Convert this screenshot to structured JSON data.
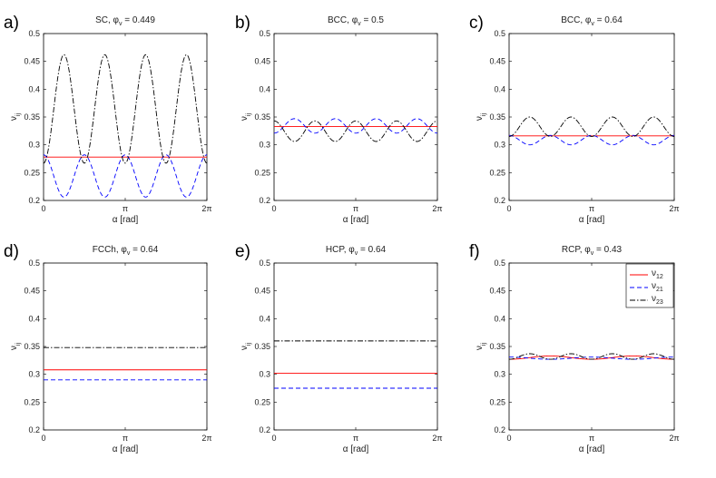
{
  "chart_data": [
    {
      "type": "line",
      "panel_label": "a)",
      "title_prefix": "SC, ",
      "phi_label": "φ",
      "phi_sub": "v",
      "phi_value": "= 0.449",
      "xlabel": "α [rad]",
      "ylabel": "ν",
      "ylabel_sub": "ij",
      "xticks": [
        "0",
        "π",
        "2π"
      ],
      "yticks": [
        "0.2",
        "0.25",
        "0.3",
        "0.35",
        "0.4",
        "0.45",
        "0.5"
      ],
      "xlim": [
        0,
        6.2832
      ],
      "ylim": [
        0.2,
        0.5
      ],
      "series": [
        {
          "name": "ν12",
          "style": "solid",
          "color": "#ff0000",
          "mean": 0.278,
          "amp": 0,
          "phase": 0,
          "period_div": 4
        },
        {
          "name": "ν21",
          "style": "dashed",
          "color": "#0000ff",
          "mean": 0.244,
          "amp": 0.038,
          "phase": 0,
          "period_div": 4
        },
        {
          "name": "ν23",
          "style": "dashdot",
          "color": "#000000",
          "mean": 0.3645,
          "amp": 0.0975,
          "phase": 3.1416,
          "period_div": 4
        }
      ]
    },
    {
      "type": "line",
      "panel_label": "b)",
      "title_prefix": "BCC, ",
      "phi_label": "φ",
      "phi_sub": "v",
      "phi_value": "= 0.5",
      "xlabel": "α [rad]",
      "ylabel": "ν",
      "ylabel_sub": "ij",
      "xticks": [
        "0",
        "π",
        "2π"
      ],
      "yticks": [
        "0.2",
        "0.25",
        "0.3",
        "0.35",
        "0.4",
        "0.45",
        "0.5"
      ],
      "xlim": [
        0,
        6.2832
      ],
      "ylim": [
        0.2,
        0.5
      ],
      "series": [
        {
          "name": "ν12",
          "style": "solid",
          "color": "#ff0000",
          "mean": 0.333,
          "amp": 0,
          "phase": 0,
          "period_div": 4
        },
        {
          "name": "ν21",
          "style": "dashed",
          "color": "#0000ff",
          "mean": 0.334,
          "amp": 0.013,
          "phase": 3.1416,
          "period_div": 4
        },
        {
          "name": "ν23",
          "style": "dashdot",
          "color": "#000000",
          "mean": 0.3245,
          "amp": 0.0185,
          "phase": 0,
          "period_div": 4
        }
      ]
    },
    {
      "type": "line",
      "panel_label": "c)",
      "title_prefix": "BCC, ",
      "phi_label": "φ",
      "phi_sub": "v",
      "phi_value": "= 0.64",
      "xlabel": "α [rad]",
      "ylabel": "ν",
      "ylabel_sub": "ij",
      "xticks": [
        "0",
        "π",
        "2π"
      ],
      "yticks": [
        "0.2",
        "0.25",
        "0.3",
        "0.35",
        "0.4",
        "0.45",
        "0.5"
      ],
      "xlim": [
        0,
        6.2832
      ],
      "ylim": [
        0.2,
        0.5
      ],
      "series": [
        {
          "name": "ν12",
          "style": "solid",
          "color": "#ff0000",
          "mean": 0.316,
          "amp": 0,
          "phase": 0,
          "period_div": 4
        },
        {
          "name": "ν21",
          "style": "dashed",
          "color": "#0000ff",
          "mean": 0.3085,
          "amp": 0.0085,
          "phase": 0,
          "period_div": 4
        },
        {
          "name": "ν23",
          "style": "dashdot",
          "color": "#000000",
          "mean": 0.3325,
          "amp": 0.0175,
          "phase": 3.1416,
          "period_div": 4
        }
      ]
    },
    {
      "type": "line",
      "panel_label": "d)",
      "title_prefix": "FCCh, ",
      "phi_label": "φ",
      "phi_sub": "v",
      "phi_value": "= 0.64",
      "xlabel": "α [rad]",
      "ylabel": "ν",
      "ylabel_sub": "ij",
      "xticks": [
        "0",
        "π",
        "2π"
      ],
      "yticks": [
        "0.2",
        "0.25",
        "0.3",
        "0.35",
        "0.4",
        "0.45",
        "0.5"
      ],
      "xlim": [
        0,
        6.2832
      ],
      "ylim": [
        0.2,
        0.5
      ],
      "series": [
        {
          "name": "ν12",
          "style": "solid",
          "color": "#ff0000",
          "mean": 0.308,
          "amp": 0,
          "phase": 0,
          "period_div": 4
        },
        {
          "name": "ν21",
          "style": "dashed",
          "color": "#0000ff",
          "mean": 0.29,
          "amp": 0,
          "phase": 0,
          "period_div": 4
        },
        {
          "name": "ν23",
          "style": "dashdot",
          "color": "#000000",
          "mean": 0.348,
          "amp": 0,
          "phase": 0,
          "period_div": 4
        }
      ]
    },
    {
      "type": "line",
      "panel_label": "e)",
      "title_prefix": "HCP, ",
      "phi_label": "φ",
      "phi_sub": "v",
      "phi_value": "= 0.64",
      "xlabel": "α [rad]",
      "ylabel": "ν",
      "ylabel_sub": "ij",
      "xticks": [
        "0",
        "π",
        "2π"
      ],
      "yticks": [
        "0.2",
        "0.25",
        "0.3",
        "0.35",
        "0.4",
        "0.45",
        "0.5"
      ],
      "xlim": [
        0,
        6.2832
      ],
      "ylim": [
        0.2,
        0.5
      ],
      "series": [
        {
          "name": "ν12",
          "style": "solid",
          "color": "#ff0000",
          "mean": 0.302,
          "amp": 0,
          "phase": 0,
          "period_div": 4
        },
        {
          "name": "ν21",
          "style": "dashed",
          "color": "#0000ff",
          "mean": 0.275,
          "amp": 0,
          "phase": 0,
          "period_div": 4
        },
        {
          "name": "ν23",
          "style": "dashdot",
          "color": "#000000",
          "mean": 0.36,
          "amp": 0,
          "phase": 0,
          "period_div": 4
        }
      ]
    },
    {
      "type": "line",
      "panel_label": "f)",
      "title_prefix": "RCP, ",
      "phi_label": "φ",
      "phi_sub": "v",
      "phi_value": "= 0.43",
      "xlabel": "α [rad]",
      "ylabel": "ν",
      "ylabel_sub": "ij",
      "xticks": [
        "0",
        "π",
        "2π"
      ],
      "yticks": [
        "0.2",
        "0.25",
        "0.3",
        "0.35",
        "0.4",
        "0.45",
        "0.5"
      ],
      "xlim": [
        0,
        6.2832
      ],
      "ylim": [
        0.2,
        0.5
      ],
      "legend": {
        "position": "top-right",
        "entries": [
          {
            "base": "ν",
            "sub": "12",
            "style": "solid",
            "color": "#ff0000"
          },
          {
            "base": "ν",
            "sub": "21",
            "style": "dashed",
            "color": "#0000ff"
          },
          {
            "base": "ν",
            "sub": "23",
            "style": "dashdot",
            "color": "#000000"
          }
        ]
      },
      "series": [
        {
          "name": "ν12",
          "style": "solid",
          "color": "#ff0000",
          "mean": 0.33,
          "amp": 0.003,
          "phase": 3.1416,
          "period_div": 2
        },
        {
          "name": "ν21",
          "style": "dashed",
          "color": "#0000ff",
          "mean": 0.329,
          "amp": 0.002,
          "phase": 0,
          "period_div": 2
        },
        {
          "name": "ν23",
          "style": "dashdot",
          "color": "#000000",
          "mean": 0.332,
          "amp": 0.005,
          "phase": 3.1416,
          "period_div": 4
        }
      ]
    }
  ]
}
